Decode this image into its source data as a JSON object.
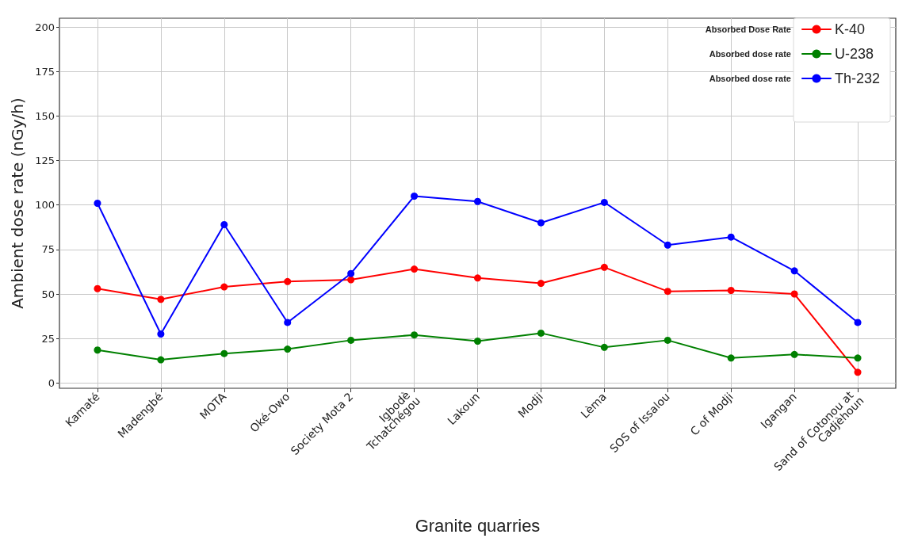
{
  "chart_data": {
    "type": "line",
    "xlabel": "Granite quarries",
    "ylabel": "Ambient dose rate (nGy/h)",
    "categories": [
      "Kamaté",
      "Madengbé",
      "MOTA",
      "Oké-Owo",
      "Society Mota 2",
      "Igbodè Tchatchégou",
      "Lakoun",
      "Modji",
      "Lèma",
      "SOS of Issalou",
      "C of Modji",
      "Igangan",
      "Sand of Cotonou at Cadjèhoun"
    ],
    "series": [
      {
        "name": "K-40",
        "color": "#ff0000",
        "values": [
          53,
          47,
          54,
          57,
          58,
          64,
          59,
          56,
          65,
          51.5,
          52,
          50,
          6
        ]
      },
      {
        "name": "U-238",
        "color": "#008000",
        "values": [
          18.5,
          13,
          16.5,
          19,
          24,
          27,
          23.5,
          28,
          20,
          24,
          14,
          16,
          14
        ]
      },
      {
        "name": "Th-232",
        "color": "#0000ff",
        "values": [
          101,
          27.5,
          89,
          34,
          61.5,
          105,
          102,
          90,
          101.5,
          77.5,
          82,
          63,
          34
        ]
      }
    ],
    "ylim": [
      -3,
      205
    ],
    "yticks": [
      0,
      25,
      50,
      75,
      100,
      125,
      150,
      175,
      200
    ],
    "grid": true,
    "legend": "top right",
    "marker": "circle",
    "line_style": "solid",
    "annotations": [
      "Absorbed Dose Rate",
      "Absorbed dose rate",
      "Absorbed dose rate"
    ]
  }
}
